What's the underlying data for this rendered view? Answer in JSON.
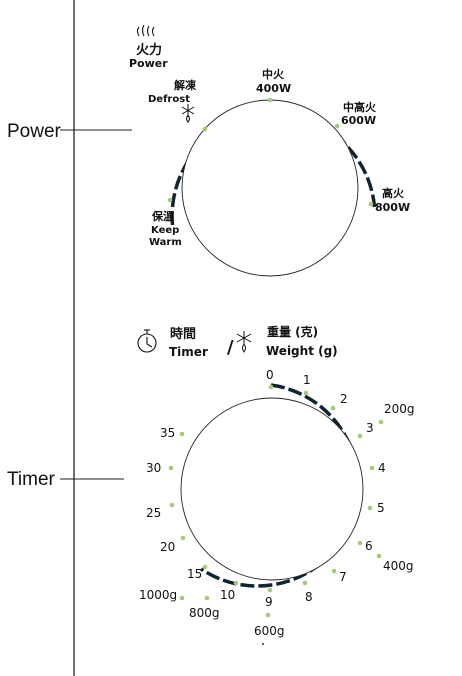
{
  "colors": {
    "ink": "#111111",
    "dial_ring": "#0e2430",
    "dot": "#a8c97a",
    "leader": "#222222"
  },
  "callouts": {
    "power": "Power",
    "timer": "Timer"
  },
  "power_knob": {
    "icon": "flame-icon",
    "header": {
      "cn": "火力",
      "en": "Power"
    },
    "labels": {
      "defrost": {
        "cn": "解凍",
        "en": "Defrost"
      },
      "mid": {
        "cn": "中火",
        "en": "400W"
      },
      "midhigh": {
        "cn": "中高火",
        "en": "600W"
      },
      "high": {
        "cn": "高火",
        "en": "800W"
      },
      "keepwarm": {
        "cn": "保溫",
        "en1": "Keep",
        "en2": "Warm"
      }
    }
  },
  "timer_knob": {
    "timer_icon": "stopwatch-icon",
    "weight_icon": "snowflake-icon",
    "header": {
      "timer_cn": "時間",
      "timer_en": "Timer",
      "sep": "/",
      "weight_cn": "重量 (克)",
      "weight_en": "Weight (g)"
    },
    "marks": {
      "m0": "0",
      "m1": "1",
      "m2": "2",
      "m3": "3",
      "m4": "4",
      "m5": "5",
      "m6": "6",
      "m7": "7",
      "m8": "8",
      "m9": "9",
      "m10": "10",
      "m15": "15",
      "m20": "20",
      "m25": "25",
      "m30": "30",
      "m35": "35"
    },
    "weights": {
      "w200": "200g",
      "w400": "400g",
      "w600": "600g",
      "w800": "800g",
      "w1000": "1000g"
    }
  }
}
